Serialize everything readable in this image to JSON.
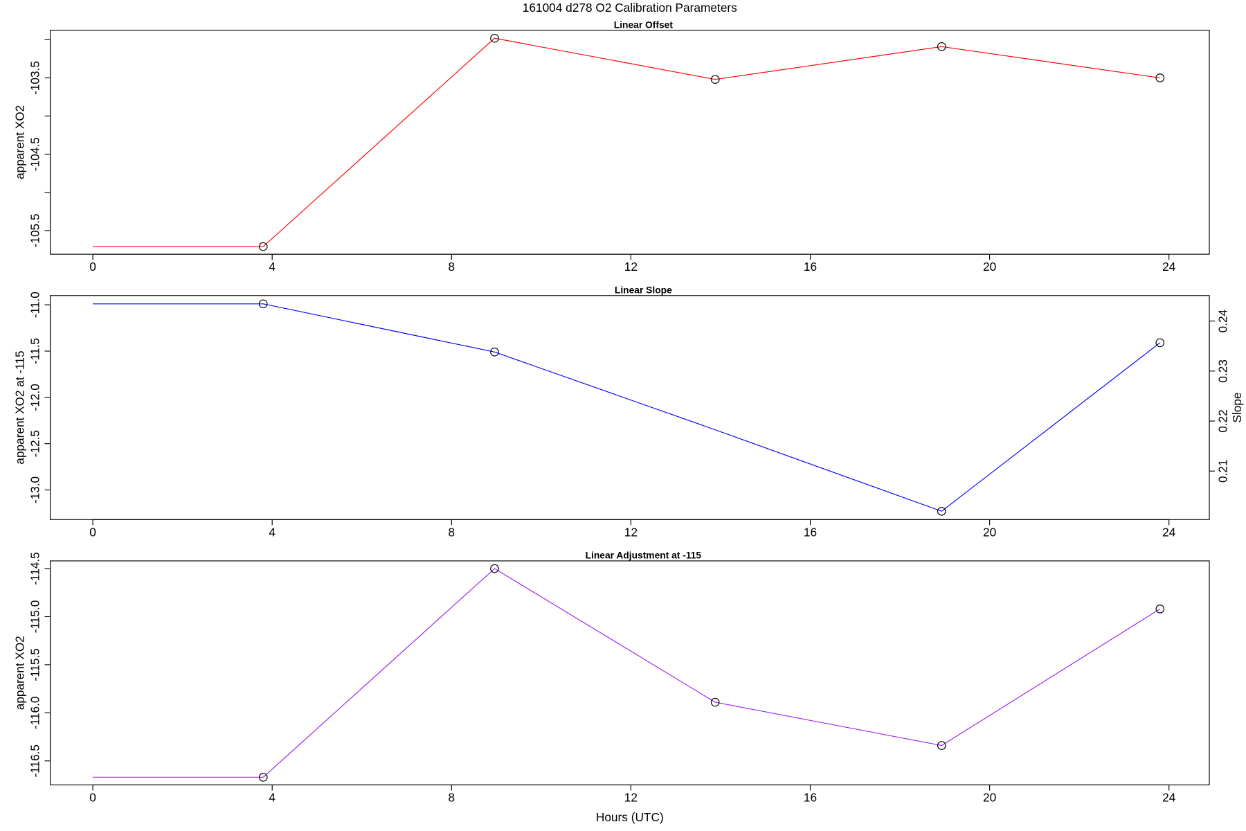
{
  "page_title": "161004   d278   O2 Calibration Parameters",
  "chart_data": [
    {
      "type": "line",
      "title": "Linear Offset",
      "ylabel": "apparent XO2",
      "x": [
        0,
        3.8,
        8.96,
        13.88,
        18.93,
        23.8
      ],
      "xlim": [
        -0.95,
        24.9
      ],
      "xticks": [
        0,
        4,
        8,
        12,
        16,
        20,
        24
      ],
      "ylim": [
        -105.81,
        -102.875
      ],
      "yticks": [
        -103.5,
        -104.5,
        -105.5
      ],
      "yminorticks": [
        -103,
        -104,
        -105
      ],
      "series": [
        {
          "color": "#ff0000",
          "values": [
            -105.71,
            -105.71,
            -102.98,
            -103.52,
            -103.09,
            -103.5
          ],
          "markers": [
            false,
            true,
            true,
            true,
            true,
            true
          ]
        }
      ]
    },
    {
      "type": "line",
      "title": "Linear Slope",
      "ylabel": "apparent XO2 at -115",
      "y2label": "Slope",
      "x": [
        0,
        3.8,
        8.96,
        13.88,
        18.93,
        23.8
      ],
      "xlim": [
        -0.95,
        24.9
      ],
      "xticks": [
        0,
        4,
        8,
        12,
        16,
        20,
        24
      ],
      "ylim": [
        -13.32,
        -10.9
      ],
      "yticks": [
        {
          "value": -11,
          "label": "-11.0"
        },
        -11.5,
        {
          "value": -12,
          "label": "-12.0"
        },
        -12.5,
        {
          "value": -13,
          "label": "-13.0"
        }
      ],
      "y2lim": [
        0.2003,
        0.2451
      ],
      "y2ticks": [
        0.21,
        0.22,
        0.23,
        0.24
      ],
      "series": [
        {
          "color": "#0000ff",
          "values": [
            -10.99,
            -10.99,
            -11.51,
            -12.35,
            -13.23,
            -11.41
          ],
          "markers": [
            false,
            true,
            true,
            false,
            true,
            true
          ]
        }
      ]
    },
    {
      "type": "line",
      "title": "Linear Adjustment at -115",
      "ylabel": "apparent XO2",
      "xlabel": "Hours (UTC)",
      "x": [
        0,
        3.8,
        8.96,
        13.88,
        18.93,
        23.8
      ],
      "xlim": [
        -0.95,
        24.9
      ],
      "xticks": [
        0,
        4,
        8,
        12,
        16,
        20,
        24
      ],
      "ylim": [
        -116.75,
        -114.42
      ],
      "yticks": [
        -114.5,
        {
          "value": -115,
          "label": "-115.0"
        },
        -115.5,
        {
          "value": -116,
          "label": "-116.0"
        },
        -116.5
      ],
      "series": [
        {
          "color": "#a020f0",
          "values": [
            -116.67,
            -116.67,
            -114.5,
            -115.89,
            -116.34,
            -114.92
          ],
          "markers": [
            false,
            true,
            true,
            true,
            true,
            true
          ]
        }
      ]
    }
  ]
}
